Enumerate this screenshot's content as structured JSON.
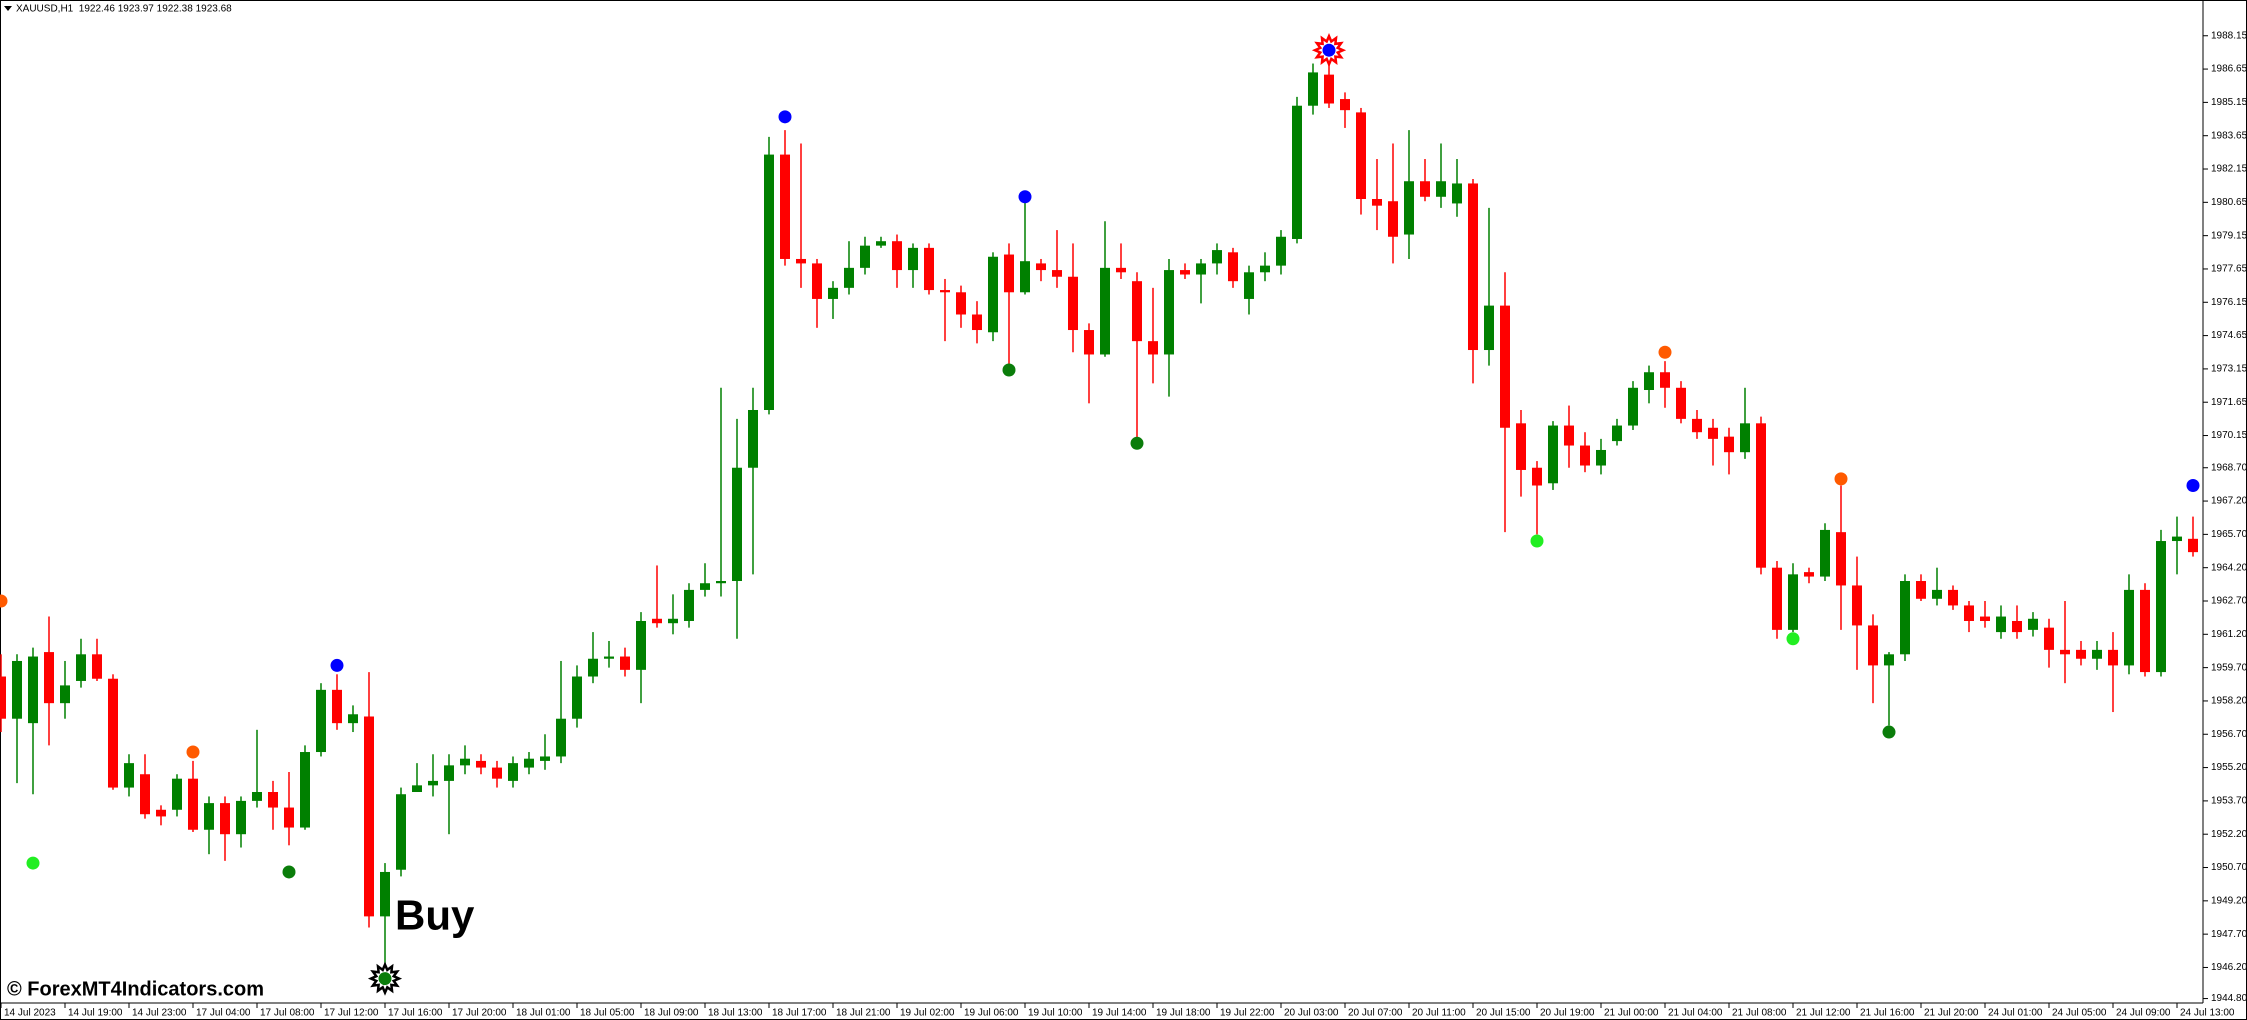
{
  "chart_data": {
    "type": "candlestick",
    "info": "XAUUSD,H1  1922.46 1923.97 1922.38 1923.68",
    "watermark": "© ForexMT4Indicators.com",
    "up_color": "#008000",
    "down_color": "#ff0000",
    "ylim": [
      1944.6,
      1989.76
    ],
    "yticks": [
      1988.15,
      1986.65,
      1985.15,
      1983.65,
      1982.15,
      1980.65,
      1979.15,
      1977.65,
      1976.15,
      1974.65,
      1973.15,
      1971.65,
      1970.15,
      {
        "value": 1968.7,
        "label": "1968.70"
      },
      {
        "value": 1967.2,
        "label": "1967.20"
      },
      {
        "value": 1965.7,
        "label": "1965.70"
      },
      {
        "value": 1964.2,
        "label": "1964.20"
      },
      {
        "value": 1962.7,
        "label": "1962.70"
      },
      {
        "value": 1961.2,
        "label": "1961.20"
      },
      {
        "value": 1959.7,
        "label": "1959.70"
      },
      {
        "value": 1958.2,
        "label": "1958.20"
      },
      {
        "value": 1956.7,
        "label": "1956.70"
      },
      {
        "value": 1955.2,
        "label": "1955.20"
      },
      {
        "value": 1953.7,
        "label": "1953.70"
      },
      {
        "value": 1952.2,
        "label": "1952.20"
      },
      {
        "value": 1950.7,
        "label": "1950.70"
      },
      {
        "value": 1949.2,
        "label": "1949.20"
      },
      {
        "value": 1947.7,
        "label": "1947.70"
      },
      {
        "value": 1946.2,
        "label": "1946.20"
      },
      {
        "value": 1944.8,
        "label": "1944.80"
      }
    ],
    "categories": [
      "14 Jul 2023",
      null,
      null,
      null,
      "14 Jul 19:00",
      null,
      null,
      null,
      "14 Jul 23:00",
      null,
      null,
      null,
      "17 Jul 04:00",
      null,
      null,
      null,
      "17 Jul 08:00",
      null,
      null,
      null,
      "17 Jul 12:00",
      null,
      null,
      null,
      "17 Jul 16:00",
      null,
      null,
      null,
      "17 Jul 20:00",
      null,
      null,
      null,
      "18 Jul 01:00",
      null,
      null,
      null,
      "18 Jul 05:00",
      null,
      null,
      null,
      "18 Jul 09:00",
      null,
      null,
      null,
      "18 Jul 13:00",
      null,
      null,
      null,
      "18 Jul 17:00",
      null,
      null,
      null,
      "18 Jul 21:00",
      null,
      null,
      null,
      "19 Jul 02:00",
      null,
      null,
      null,
      "19 Jul 06:00",
      null,
      null,
      null,
      "19 Jul 10:00",
      null,
      null,
      null,
      "19 Jul 14:00",
      null,
      null,
      null,
      "19 Jul 18:00",
      null,
      null,
      null,
      "19 Jul 22:00",
      null,
      null,
      null,
      "20 Jul 03:00",
      null,
      null,
      null,
      "20 Jul 07:00",
      null,
      null,
      null,
      "20 Jul 11:00",
      null,
      null,
      null,
      "20 Jul 15:00",
      null,
      null,
      null,
      "20 Jul 19:00",
      null,
      null,
      null,
      "21 Jul 00:00",
      null,
      null,
      null,
      "21 Jul 04:00",
      null,
      null,
      null,
      "21 Jul 08:00",
      null,
      null,
      null,
      "21 Jul 12:00",
      null,
      null,
      null,
      "21 Jul 16:00",
      null,
      null,
      null,
      "21 Jul 20:00",
      null,
      null,
      null,
      "24 Jul 01:00",
      null,
      null,
      null,
      "24 Jul 05:00",
      null,
      null,
      null,
      "24 Jul 09:00",
      null,
      null,
      null,
      "24 Jul 13:00",
      null
    ],
    "open": [
      1959.3,
      1957.4,
      1957.2,
      1960.4,
      1958.1,
      1959.1,
      1960.3,
      1959.2,
      1954.3,
      1954.9,
      1953.3,
      1953.3,
      1954.7,
      1952.4,
      1953.6,
      1952.2,
      1953.7,
      1954.1,
      1953.4,
      1952.5,
      1955.9,
      1958.7,
      1957.2,
      1957.5,
      1948.5,
      1950.6,
      1954.1,
      1954.4,
      1954.6,
      1955.3,
      1955.5,
      1955.2,
      1954.6,
      1955.2,
      1955.5,
      1955.7,
      1957.4,
      1959.3,
      1960.1,
      1960.2,
      1959.6,
      1961.9,
      1961.7,
      1961.8,
      1963.2,
      1963.5,
      1963.6,
      1968.7,
      1971.3,
      1982.8,
      1978.1,
      1977.9,
      1976.3,
      1976.8,
      1977.7,
      1978.7,
      1978.9,
      1977.6,
      1978.6,
      1976.7,
      1976.6,
      1975.6,
      1974.8,
      1978.3,
      1976.6,
      1977.9,
      1977.6,
      1977.3,
      1974.9,
      1973.8,
      1977.7,
      1977.1,
      1974.4,
      1973.8,
      1977.6,
      1977.4,
      1977.9,
      1978.4,
      1976.3,
      1977.5,
      1977.8,
      1979.0,
      1985.0,
      1986.4,
      1985.3,
      1984.7,
      1980.8,
      1980.7,
      1979.2,
      1981.6,
      1980.9,
      1980.6,
      1981.5,
      1974.0,
      1976.0,
      1970.7,
      1968.7,
      1968.0,
      1970.6,
      1969.7,
      1968.8,
      1969.9,
      1970.6,
      1972.2,
      1973.0,
      1972.3,
      1970.9,
      1970.5,
      1970.1,
      1969.4,
      1970.7,
      1964.2,
      1961.4,
      1964.0,
      1963.8,
      1965.8,
      1963.4,
      1961.6,
      1959.8,
      1960.3,
      1963.6,
      1962.8,
      1963.2,
      1962.5,
      1962.0,
      1961.3,
      1961.8,
      1961.4,
      1961.5,
      1960.5,
      1960.5,
      1960.1,
      1960.5,
      1959.8,
      1963.2,
      1959.5,
      1965.4,
      1965.5
    ],
    "high": [
      1960.3,
      1960.3,
      1960.6,
      1962.0,
      1960.0,
      1961.0,
      1961.0,
      1959.4,
      1955.8,
      1955.8,
      1953.5,
      1954.9,
      1955.5,
      1953.9,
      1953.9,
      1953.9,
      1956.9,
      1954.6,
      1955.0,
      1956.2,
      1959.0,
      1959.4,
      1958.0,
      1959.5,
      1950.9,
      1954.3,
      1955.4,
      1955.8,
      1955.8,
      1956.2,
      1955.8,
      1955.5,
      1955.7,
      1955.9,
      1956.7,
      1960.0,
      1959.8,
      1961.3,
      1960.9,
      1960.6,
      1962.2,
      1964.3,
      1963.0,
      1963.5,
      1964.4,
      1972.3,
      1970.9,
      1972.3,
      1983.6,
      1983.9,
      1983.3,
      1978.1,
      1977.1,
      1978.9,
      1979.1,
      1979.1,
      1979.2,
      1978.8,
      1978.8,
      1977.2,
      1976.9,
      1976.2,
      1978.4,
      1978.8,
      1980.7,
      1978.1,
      1979.4,
      1978.8,
      1975.2,
      1979.8,
      1978.8,
      1977.5,
      1976.8,
      1978.1,
      1977.9,
      1978.1,
      1978.8,
      1978.6,
      1977.8,
      1978.4,
      1979.4,
      1985.4,
      1986.9,
      1987.5,
      1985.6,
      1984.9,
      1982.6,
      1983.3,
      1983.9,
      1982.6,
      1983.3,
      1982.6,
      1981.7,
      1980.4,
      1977.5,
      1971.3,
      1969.0,
      1970.8,
      1971.5,
      1970.3,
      1970.0,
      1970.9,
      1972.6,
      1973.3,
      1973.5,
      1972.6,
      1971.3,
      1970.9,
      1970.5,
      1972.3,
      1971.0,
      1964.5,
      1964.4,
      1964.2,
      1966.2,
      1967.9,
      1964.7,
      1962.1,
      1960.4,
      1963.9,
      1963.9,
      1964.2,
      1963.4,
      1962.7,
      1962.7,
      1962.5,
      1962.5,
      1962.2,
      1961.9,
      1962.7,
      1960.9,
      1960.9,
      1961.3,
      1963.9,
      1963.5,
      1965.9,
      1966.5,
      1966.5
    ],
    "low": [
      1956.8,
      1954.5,
      1954.0,
      1956.2,
      1957.4,
      1958.8,
      1959.1,
      1954.2,
      1953.9,
      1952.9,
      1952.6,
      1953.0,
      1952.3,
      1951.3,
      1951.0,
      1951.6,
      1953.4,
      1952.4,
      1951.7,
      1952.4,
      1955.7,
      1956.9,
      1956.8,
      1948.0,
      1945.8,
      1950.3,
      1954.1,
      1953.9,
      1952.2,
      1954.9,
      1954.9,
      1954.3,
      1954.3,
      1954.9,
      1955.1,
      1955.4,
      1957.0,
      1959.0,
      1959.7,
      1959.3,
      1958.1,
      1961.5,
      1961.2,
      1961.5,
      1962.9,
      1962.9,
      1961.0,
      1963.9,
      1971.1,
      1977.8,
      1976.8,
      1975.0,
      1975.4,
      1976.5,
      1977.4,
      1978.6,
      1976.8,
      1976.8,
      1976.5,
      1974.4,
      1975.0,
      1974.3,
      1974.4,
      1973.1,
      1976.5,
      1977.1,
      1976.8,
      1973.9,
      1971.6,
      1973.7,
      1977.2,
      1970.0,
      1972.5,
      1971.9,
      1977.2,
      1976.1,
      1977.4,
      1976.8,
      1975.6,
      1977.1,
      1977.4,
      1978.8,
      1984.6,
      1984.9,
      1984.0,
      1980.1,
      1979.4,
      1977.9,
      1978.1,
      1980.7,
      1980.4,
      1980.0,
      1972.5,
      1973.3,
      1965.8,
      1967.4,
      1965.7,
      1967.7,
      1968.7,
      1968.5,
      1968.4,
      1969.7,
      1970.4,
      1971.6,
      1971.4,
      1970.7,
      1970.0,
      1968.8,
      1968.4,
      1969.1,
      1963.9,
      1961.0,
      1961.3,
      1963.5,
      1963.6,
      1961.4,
      1959.6,
      1958.1,
      1957.1,
      1960.0,
      1962.7,
      1962.5,
      1962.3,
      1961.3,
      1961.5,
      1961.0,
      1961.0,
      1961.1,
      1959.7,
      1959.0,
      1959.8,
      1959.6,
      1957.7,
      1959.4,
      1959.3,
      1959.3,
      1963.9,
      1964.7
    ],
    "close": [
      1957.4,
      1960.0,
      1960.2,
      1958.1,
      1958.9,
      1960.3,
      1959.2,
      1954.3,
      1955.4,
      1953.1,
      1953.0,
      1954.7,
      1952.4,
      1953.6,
      1952.2,
      1953.7,
      1954.1,
      1953.4,
      1952.5,
      1955.9,
      1958.7,
      1957.2,
      1957.6,
      1948.5,
      1950.5,
      1954.0,
      1954.4,
      1954.6,
      1955.3,
      1955.6,
      1955.2,
      1954.7,
      1955.4,
      1955.6,
      1955.7,
      1957.4,
      1959.3,
      1960.1,
      1960.2,
      1959.6,
      1961.8,
      1961.7,
      1961.9,
      1963.2,
      1963.5,
      1963.6,
      1968.7,
      1971.3,
      1982.8,
      1978.1,
      1977.9,
      1976.3,
      1976.8,
      1977.7,
      1978.7,
      1978.9,
      1977.6,
      1978.6,
      1976.7,
      1976.6,
      1975.6,
      1974.9,
      1978.2,
      1976.6,
      1978.0,
      1977.6,
      1977.3,
      1974.9,
      1973.8,
      1977.7,
      1977.5,
      1974.4,
      1973.8,
      1977.6,
      1977.4,
      1977.9,
      1978.5,
      1977.1,
      1977.5,
      1977.8,
      1979.1,
      1985.0,
      1986.5,
      1985.1,
      1984.8,
      1980.8,
      1980.5,
      1979.1,
      1981.6,
      1980.9,
      1981.6,
      1981.5,
      1974.0,
      1976.0,
      1970.5,
      1968.6,
      1967.9,
      1970.6,
      1969.7,
      1968.8,
      1969.5,
      1970.6,
      1972.3,
      1973.0,
      1972.3,
      1970.9,
      1970.3,
      1970.0,
      1969.4,
      1970.7,
      1964.2,
      1961.4,
      1963.9,
      1963.8,
      1965.9,
      1963.4,
      1961.6,
      1959.8,
      1960.3,
      1963.6,
      1962.8,
      1963.2,
      1962.5,
      1961.8,
      1961.8,
      1962.0,
      1961.3,
      1961.9,
      1960.5,
      1960.3,
      1960.1,
      1960.5,
      1959.8,
      1963.2,
      1959.5,
      1965.4,
      1965.6,
      1964.9
    ],
    "markers": [
      {
        "index": 0,
        "value": 1962.7,
        "color": "#ff5a00"
      },
      {
        "index": 2,
        "value": 1950.9,
        "color": "#22ee22"
      },
      {
        "index": 12,
        "value": 1955.9,
        "color": "#ff5a00"
      },
      {
        "index": 18,
        "value": 1950.5,
        "color": "#0a7d0a"
      },
      {
        "index": 21,
        "value": 1959.8,
        "color": "#0000ff"
      },
      {
        "index": 24,
        "value": 1945.7,
        "color": "#0a7d0a",
        "style": "burst",
        "ring_color": "#000000",
        "label": "Buy"
      },
      {
        "index": 49,
        "value": 1984.5,
        "color": "#0000ff"
      },
      {
        "index": 63,
        "value": 1973.1,
        "color": "#0a7d0a"
      },
      {
        "index": 64,
        "value": 1980.9,
        "color": "#0000ff"
      },
      {
        "index": 71,
        "value": 1969.8,
        "color": "#0a7d0a"
      },
      {
        "index": 83,
        "value": 1987.5,
        "color": "#0000ff",
        "style": "burst",
        "ring_color": "#ff0000"
      },
      {
        "index": 96,
        "value": 1965.4,
        "color": "#22ee22"
      },
      {
        "index": 104,
        "value": 1973.9,
        "color": "#ff5a00"
      },
      {
        "index": 112,
        "value": 1961.0,
        "color": "#22ee22"
      },
      {
        "index": 115,
        "value": 1968.2,
        "color": "#ff5a00"
      },
      {
        "index": 118,
        "value": 1956.8,
        "color": "#0a7d0a"
      },
      {
        "index": 137,
        "value": 1967.9,
        "color": "#0000ff"
      }
    ]
  }
}
